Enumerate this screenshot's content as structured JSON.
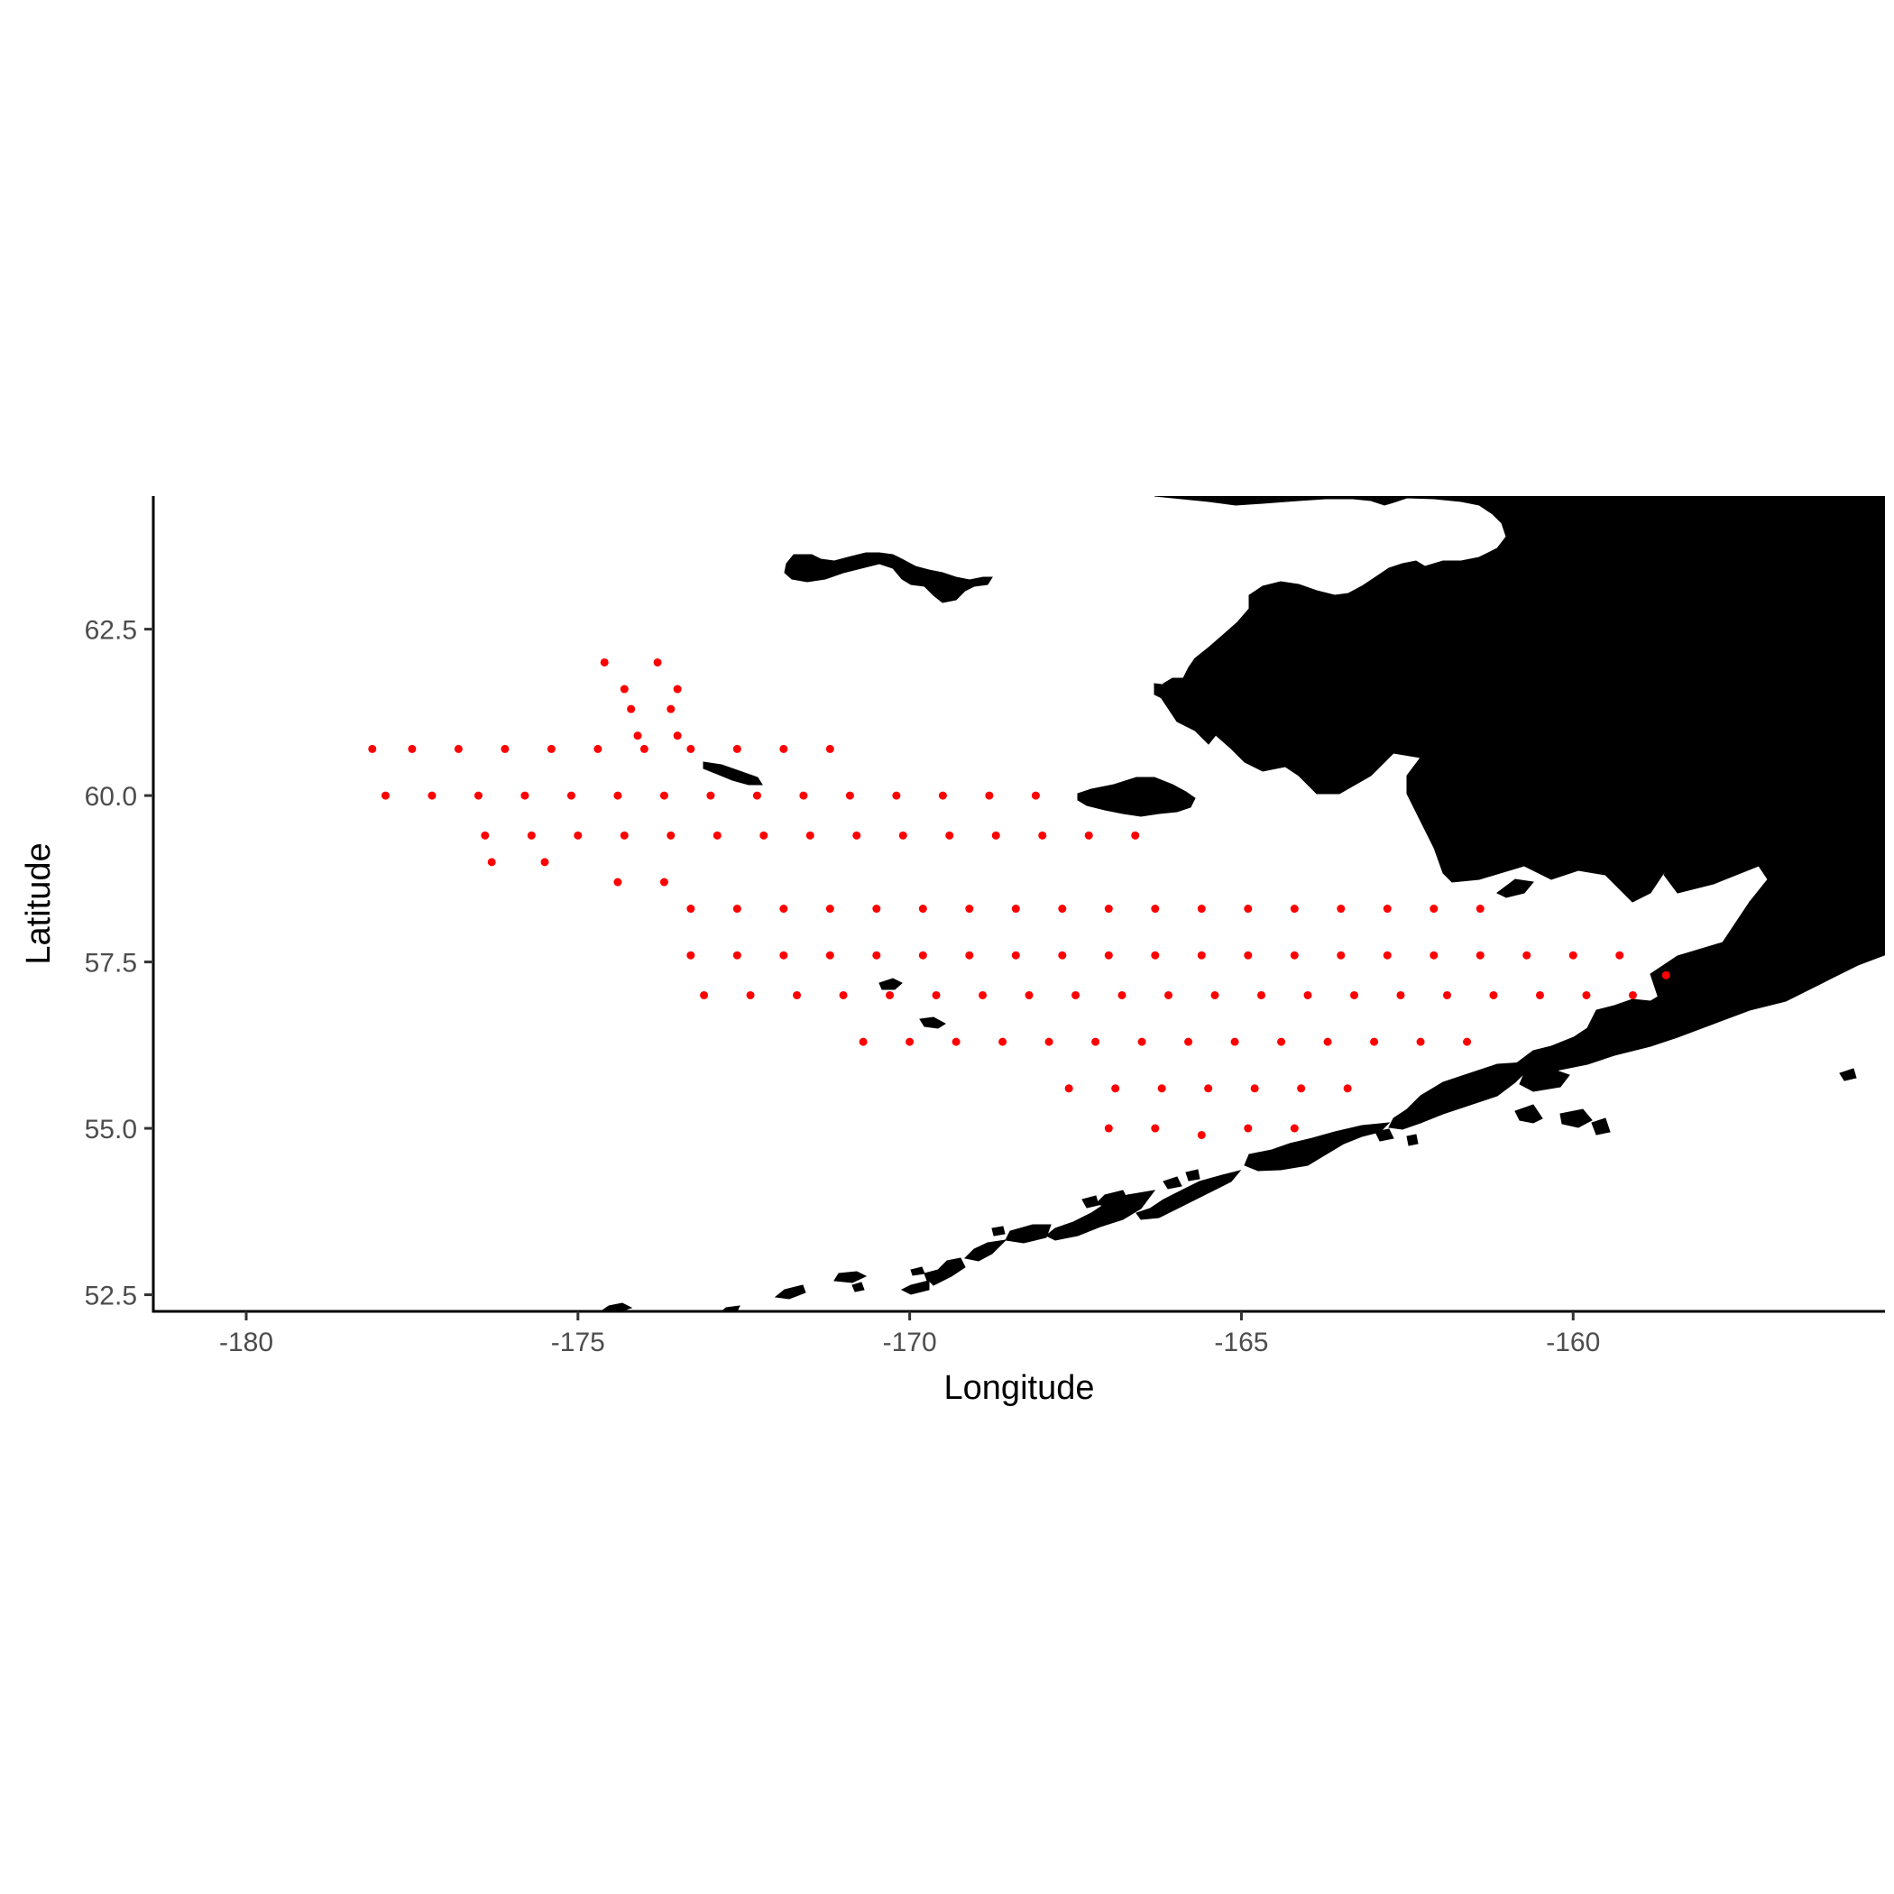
{
  "chart_data": {
    "type": "scatter",
    "title": "",
    "xlabel": "Longitude",
    "ylabel": "Latitude",
    "xlim": [
      -181.4,
      -155.3
    ],
    "ylim": [
      52.25,
      64.5
    ],
    "x_ticks": [
      -180,
      -175,
      -170,
      -165,
      -160
    ],
    "x_tick_labels": [
      "-180",
      "-175",
      "-170",
      "-165",
      "-160"
    ],
    "y_ticks": [
      52.5,
      55.0,
      57.5,
      60.0,
      62.5
    ],
    "y_tick_labels": [
      "52.5",
      "55.0",
      "57.5",
      "60.0",
      "62.5"
    ],
    "grid": false,
    "point_color": "#ff0000",
    "land_color": "#000000",
    "series": [
      {
        "type": "survey-stations",
        "points": [
          [
            -178.1,
            60.7
          ],
          [
            -177.5,
            60.7
          ],
          [
            -176.8,
            60.7
          ],
          [
            -176.1,
            60.7
          ],
          [
            -175.4,
            60.7
          ],
          [
            -174.7,
            60.7
          ],
          [
            -174.0,
            60.7
          ],
          [
            -173.3,
            60.7
          ],
          [
            -172.6,
            60.7
          ],
          [
            -171.9,
            60.7
          ],
          [
            -171.2,
            60.7
          ],
          [
            -177.9,
            60.0
          ],
          [
            -177.2,
            60.0
          ],
          [
            -176.5,
            60.0
          ],
          [
            -175.8,
            60.0
          ],
          [
            -175.1,
            60.0
          ],
          [
            -174.4,
            60.0
          ],
          [
            -173.7,
            60.0
          ],
          [
            -173.0,
            60.0
          ],
          [
            -172.3,
            60.0
          ],
          [
            -171.6,
            60.0
          ],
          [
            -170.9,
            60.0
          ],
          [
            -170.2,
            60.0
          ],
          [
            -169.5,
            60.0
          ],
          [
            -168.8,
            60.0
          ],
          [
            -168.1,
            60.0
          ],
          [
            -176.4,
            59.4
          ],
          [
            -175.7,
            59.4
          ],
          [
            -175.0,
            59.4
          ],
          [
            -174.3,
            59.4
          ],
          [
            -173.6,
            59.4
          ],
          [
            -172.9,
            59.4
          ],
          [
            -172.2,
            59.4
          ],
          [
            -171.5,
            59.4
          ],
          [
            -170.8,
            59.4
          ],
          [
            -170.1,
            59.4
          ],
          [
            -169.4,
            59.4
          ],
          [
            -168.7,
            59.4
          ],
          [
            -168.0,
            59.4
          ],
          [
            -167.3,
            59.4
          ],
          [
            -166.6,
            59.4
          ],
          [
            -176.3,
            59.0
          ],
          [
            -175.5,
            59.0
          ],
          [
            -174.4,
            58.7
          ],
          [
            -173.7,
            58.7
          ],
          [
            -174.6,
            62.0
          ],
          [
            -173.8,
            62.0
          ],
          [
            -174.3,
            61.6
          ],
          [
            -173.5,
            61.6
          ],
          [
            -174.2,
            61.3
          ],
          [
            -173.6,
            61.3
          ],
          [
            -174.1,
            60.9
          ],
          [
            -173.5,
            60.9
          ],
          [
            -173.3,
            58.3
          ],
          [
            -172.6,
            58.3
          ],
          [
            -171.9,
            58.3
          ],
          [
            -171.2,
            58.3
          ],
          [
            -170.5,
            58.3
          ],
          [
            -169.8,
            58.3
          ],
          [
            -169.1,
            58.3
          ],
          [
            -168.4,
            58.3
          ],
          [
            -167.7,
            58.3
          ],
          [
            -167.0,
            58.3
          ],
          [
            -166.3,
            58.3
          ],
          [
            -165.6,
            58.3
          ],
          [
            -164.9,
            58.3
          ],
          [
            -164.2,
            58.3
          ],
          [
            -163.5,
            58.3
          ],
          [
            -162.8,
            58.3
          ],
          [
            -162.1,
            58.3
          ],
          [
            -161.4,
            58.3
          ],
          [
            -173.3,
            57.6
          ],
          [
            -172.6,
            57.6
          ],
          [
            -171.9,
            57.6
          ],
          [
            -171.2,
            57.6
          ],
          [
            -170.5,
            57.6
          ],
          [
            -169.8,
            57.6
          ],
          [
            -169.1,
            57.6
          ],
          [
            -168.4,
            57.6
          ],
          [
            -167.7,
            57.6
          ],
          [
            -167.0,
            57.6
          ],
          [
            -166.3,
            57.6
          ],
          [
            -165.6,
            57.6
          ],
          [
            -164.9,
            57.6
          ],
          [
            -164.2,
            57.6
          ],
          [
            -163.5,
            57.6
          ],
          [
            -162.8,
            57.6
          ],
          [
            -162.1,
            57.6
          ],
          [
            -161.4,
            57.6
          ],
          [
            -160.7,
            57.6
          ],
          [
            -160.0,
            57.6
          ],
          [
            -159.3,
            57.6
          ],
          [
            -173.1,
            57.0
          ],
          [
            -172.4,
            57.0
          ],
          [
            -171.7,
            57.0
          ],
          [
            -171.0,
            57.0
          ],
          [
            -170.3,
            57.0
          ],
          [
            -169.6,
            57.0
          ],
          [
            -168.9,
            57.0
          ],
          [
            -168.2,
            57.0
          ],
          [
            -167.5,
            57.0
          ],
          [
            -166.8,
            57.0
          ],
          [
            -166.1,
            57.0
          ],
          [
            -165.4,
            57.0
          ],
          [
            -164.7,
            57.0
          ],
          [
            -164.0,
            57.0
          ],
          [
            -163.3,
            57.0
          ],
          [
            -162.6,
            57.0
          ],
          [
            -161.9,
            57.0
          ],
          [
            -161.2,
            57.0
          ],
          [
            -160.5,
            57.0
          ],
          [
            -159.8,
            57.0
          ],
          [
            -159.1,
            57.0
          ],
          [
            -170.7,
            56.3
          ],
          [
            -170.0,
            56.3
          ],
          [
            -169.3,
            56.3
          ],
          [
            -168.6,
            56.3
          ],
          [
            -167.9,
            56.3
          ],
          [
            -167.2,
            56.3
          ],
          [
            -166.5,
            56.3
          ],
          [
            -165.8,
            56.3
          ],
          [
            -165.1,
            56.3
          ],
          [
            -164.4,
            56.3
          ],
          [
            -163.7,
            56.3
          ],
          [
            -163.0,
            56.3
          ],
          [
            -162.3,
            56.3
          ],
          [
            -161.6,
            56.3
          ],
          [
            -167.6,
            55.6
          ],
          [
            -166.9,
            55.6
          ],
          [
            -166.2,
            55.6
          ],
          [
            -165.5,
            55.6
          ],
          [
            -164.8,
            55.6
          ],
          [
            -164.1,
            55.6
          ],
          [
            -163.4,
            55.6
          ],
          [
            -167.0,
            55.0
          ],
          [
            -166.3,
            55.0
          ],
          [
            -165.6,
            54.9
          ],
          [
            -164.9,
            55.0
          ],
          [
            -164.2,
            55.0
          ],
          [
            -158.6,
            57.3
          ]
        ]
      }
    ]
  }
}
